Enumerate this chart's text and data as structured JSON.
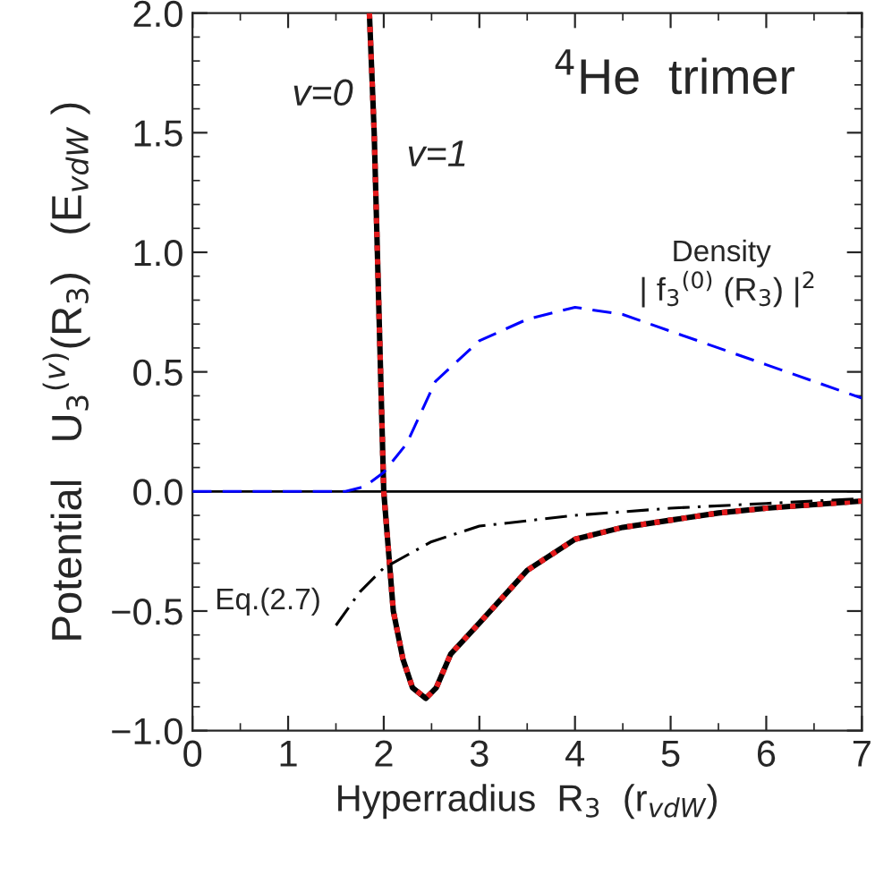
{
  "chart_data": {
    "type": "line",
    "xlabel": "Hyperradius  R$_{3}$  (r$_{vdW}$)",
    "ylabel": "Potential   U$_{3}$$^{(v)}$(R$_{3}$)   (E$_{vdW}$ )",
    "xlim": [
      0,
      7
    ],
    "ylim": [
      -1,
      2
    ],
    "xticks": [
      0,
      1,
      2,
      3,
      4,
      5,
      6,
      7
    ],
    "yticks": [
      {
        "value": -1,
        "label": "−1.0"
      },
      {
        "value": -0.5,
        "label": "−0.5"
      },
      {
        "value": 0,
        "label": "0.0"
      },
      {
        "value": 0.5,
        "label": "0.5"
      },
      {
        "value": 1,
        "label": "1.0"
      },
      {
        "value": 1.5,
        "label": "1.5"
      },
      {
        "value": 2,
        "label": "2.0"
      }
    ],
    "grid": false,
    "legend": false,
    "series": [
      {
        "color": "#000000",
        "line_style": "solid",
        "x": [
          1.85,
          1.9,
          1.95,
          2.0,
          2.1,
          2.2,
          2.3,
          2.44,
          2.55,
          2.7,
          3.0,
          3.5,
          4.0,
          4.5,
          5.0,
          5.5,
          6.0,
          6.5,
          7.0
        ],
        "values": [
          2.0,
          1.5,
          0.75,
          0.0,
          -0.5,
          -0.7,
          -0.82,
          -0.865,
          -0.82,
          -0.68,
          -0.55,
          -0.33,
          -0.2,
          -0.15,
          -0.12,
          -0.09,
          -0.07,
          -0.055,
          -0.04
        ]
      },
      {
        "color": "#e41a1c",
        "line_style": "dotted",
        "x": [
          1.85,
          1.9,
          1.95,
          2.0,
          2.1,
          2.2,
          2.3,
          2.44,
          2.55,
          2.7,
          3.0,
          3.5,
          4.0,
          4.5,
          5.0,
          5.5,
          6.0,
          6.5,
          7.0
        ],
        "values": [
          2.0,
          1.5,
          0.75,
          0.0,
          -0.5,
          -0.7,
          -0.82,
          -0.865,
          -0.82,
          -0.68,
          -0.55,
          -0.33,
          -0.2,
          -0.15,
          -0.12,
          -0.09,
          -0.07,
          -0.055,
          -0.04
        ]
      },
      {
        "color": "#0000ff",
        "line_style": "dashed",
        "x": [
          0,
          1.0,
          1.6,
          1.8,
          2.0,
          2.24,
          2.54,
          3.0,
          3.5,
          4.0,
          4.5,
          5.0,
          6.0,
          7.0
        ],
        "values": [
          0,
          0,
          0,
          0.02,
          0.08,
          0.2,
          0.46,
          0.63,
          0.72,
          0.77,
          0.74,
          0.67,
          0.53,
          0.39
        ]
      },
      {
        "color": "#000000",
        "line_style": "dashdot",
        "x": [
          1.5,
          1.75,
          2.0,
          2.5,
          3.0,
          4.0,
          5.0,
          6.0,
          7.0
        ],
        "values": [
          -0.56,
          -0.42,
          -0.32,
          -0.21,
          -0.145,
          -0.1,
          -0.07,
          -0.05,
          -0.03
        ]
      }
    ],
    "ref_lines": [
      {
        "axis": "y",
        "value": 0,
        "color": "#000000",
        "line_style": "solid"
      }
    ],
    "annotations": [
      "v=0",
      "v=1",
      "$^{4}$He  trimer",
      "Density",
      "| f$_{3}$$^{(0)}$ (R$_{3}$) |$^{2}$",
      {
        "text": "Eq.(2.7)",
        "x": 1.5,
        "y": -0.56
      }
    ]
  }
}
